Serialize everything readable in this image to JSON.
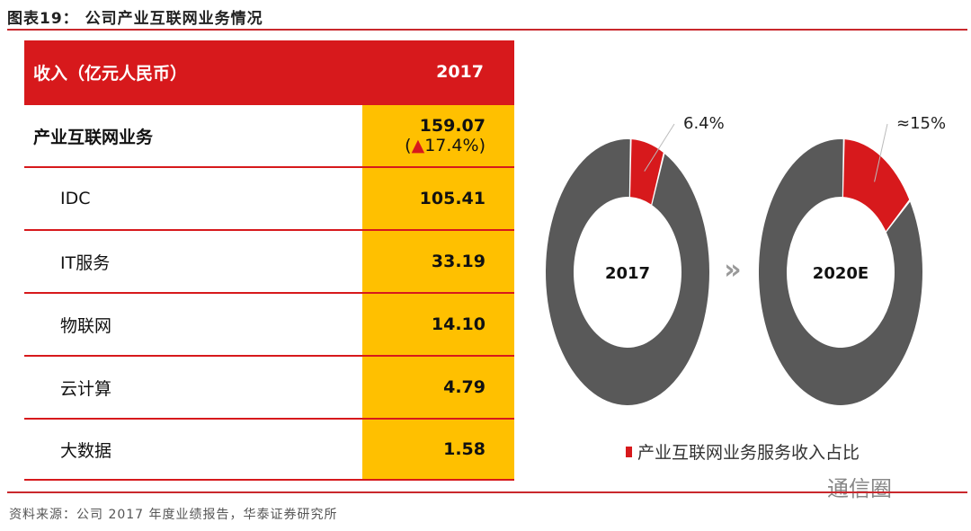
{
  "title": "图表19：  公司产业互联网业务情况",
  "source": "资料来源：公司 2017 年度业绩报告，华泰证券研究所",
  "watermark": "通信圈",
  "table": {
    "header": [
      "收入（亿元人民币）",
      "2017"
    ],
    "main": {
      "label": "产业互联网业务",
      "value": "159.07",
      "change_prefix": "(",
      "change_icon": "▲",
      "change": "17.4%)"
    },
    "rows": [
      {
        "label": "IDC",
        "value": "105.41"
      },
      {
        "label": "IT服务",
        "value": "33.19"
      },
      {
        "label": "物联网",
        "value": "14.10"
      },
      {
        "label": "云计算",
        "value": "4.79"
      },
      {
        "label": "大数据",
        "value": "1.58"
      }
    ]
  },
  "chart_data": {
    "type": "pie",
    "donuts": [
      {
        "center_label": "2017",
        "share": 6.4,
        "share_label": "6.4%"
      },
      {
        "center_label": "2020E",
        "share": 15,
        "share_label": "≈15%"
      }
    ],
    "arrow": "»",
    "legend": [
      "产业互联网业务服务收入占比"
    ],
    "colors": {
      "share": "#d7191c",
      "rest": "#595959"
    }
  }
}
